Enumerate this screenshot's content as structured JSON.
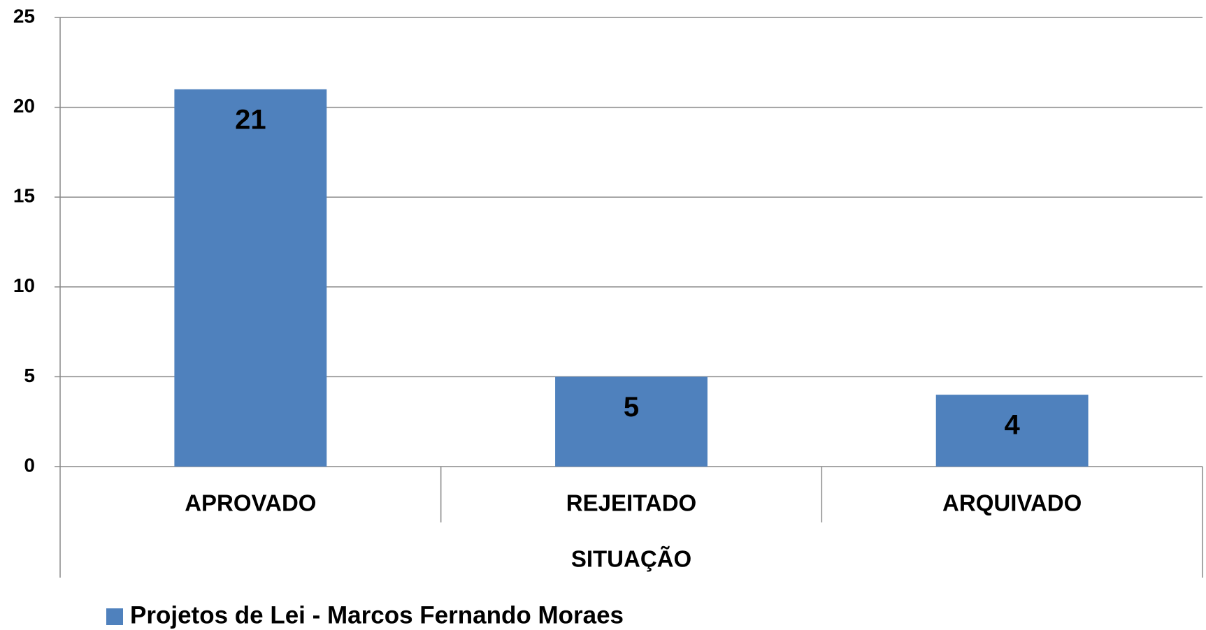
{
  "chart_data": {
    "type": "bar",
    "categories": [
      "APROVADO",
      "REJEITADO",
      "ARQUIVADO"
    ],
    "series": [
      {
        "name": "Projetos de Lei - Marcos Fernando Moraes",
        "color": "#4f81bd",
        "values": [
          21,
          5,
          4
        ]
      }
    ],
    "x_label": "SITUAÇÃO",
    "ylim": [
      0,
      25
    ],
    "yticks": [
      0,
      5,
      10,
      15,
      20,
      25
    ],
    "grid": true,
    "legend": "bottom-left"
  }
}
